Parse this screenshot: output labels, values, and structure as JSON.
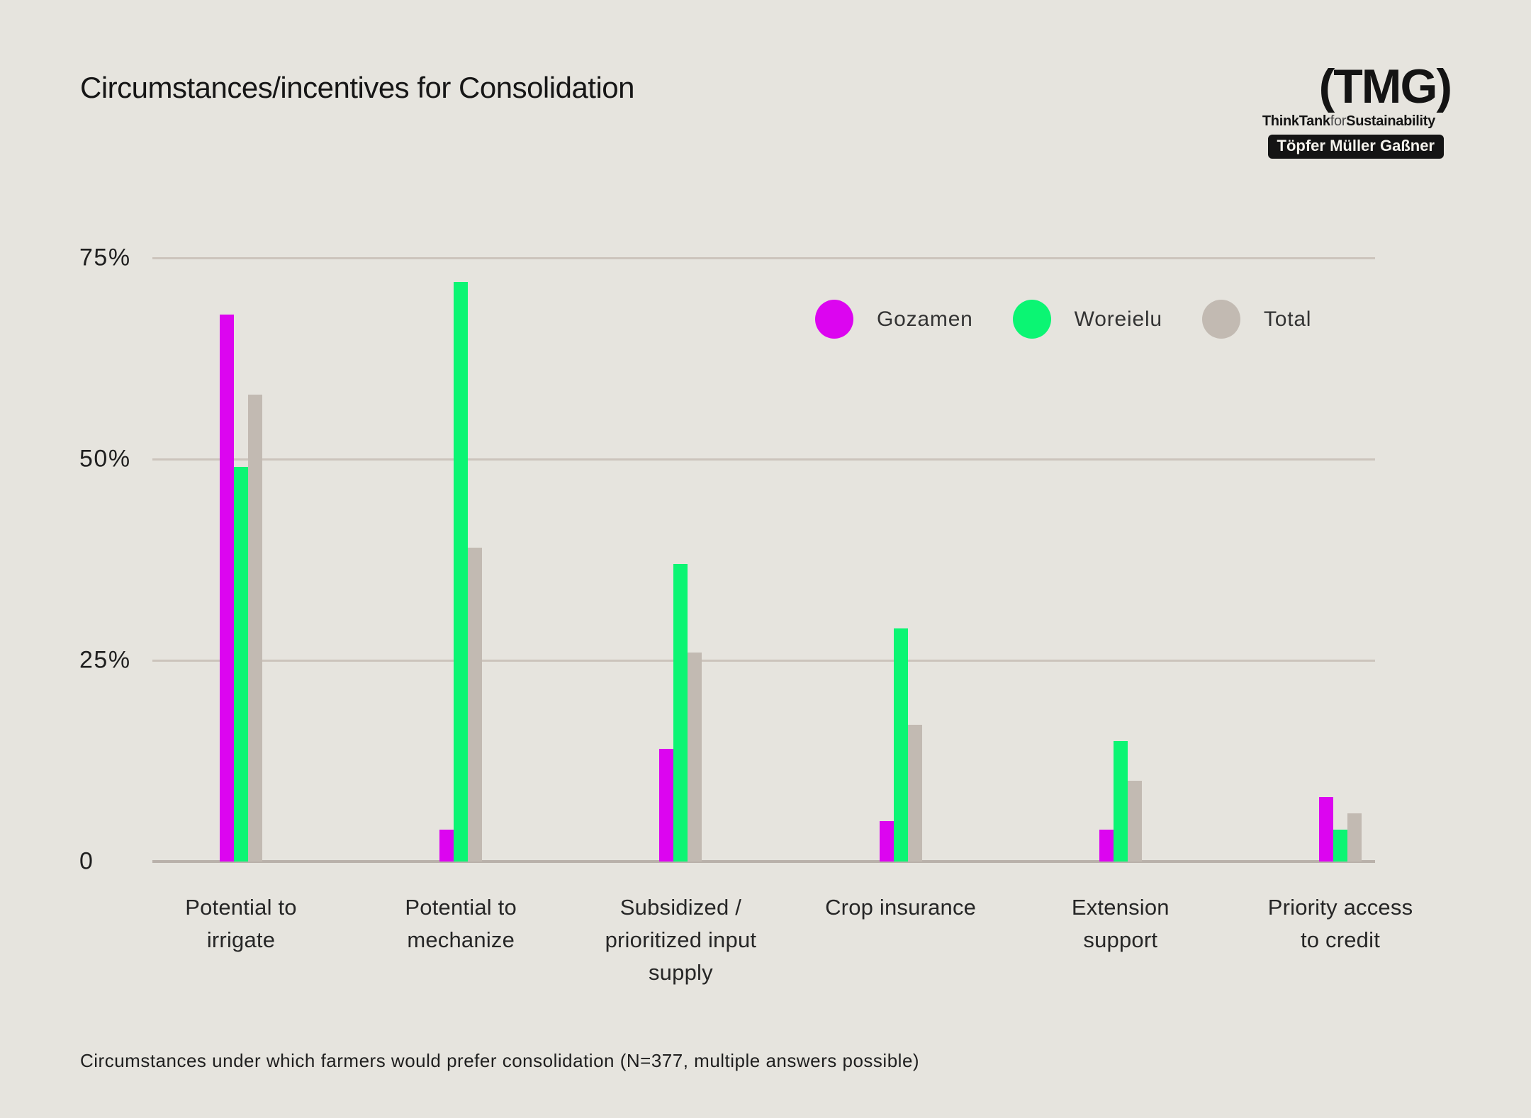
{
  "title": "Circumstances/incentives for Consolidation",
  "logo": {
    "wordmark": "(TMG)",
    "tagline_bold1": "ThinkTank",
    "tagline_light": "for",
    "tagline_bold2": "Sustainability",
    "badge": "Töpfer Müller Gaßner"
  },
  "caption": "Circumstances under which farmers would prefer consolidation (N=377, multiple answers possible)",
  "colors": {
    "background": "#E6E4DE",
    "gridline": "#CCC4BC",
    "axisline": "#B9B1AA",
    "gozamen": "#DC05F0",
    "woreielu": "#0BF573",
    "total": "#C2BAB2"
  },
  "chart_data": {
    "type": "bar",
    "categories": [
      "Potential to\nirrigate",
      "Potential to\nmechanize",
      "Subsidized /\nprioritized input\nsupply",
      "Crop insurance",
      "Extension\nsupport",
      "Priority access\nto credit"
    ],
    "series": [
      {
        "name": "Gozamen",
        "color": "#DC05F0",
        "values": [
          68,
          4,
          14,
          5,
          4,
          8
        ]
      },
      {
        "name": "Woreielu",
        "color": "#0BF573",
        "values": [
          49,
          72,
          37,
          29,
          15,
          4
        ]
      },
      {
        "name": "Total",
        "color": "#C2BAB2",
        "values": [
          58,
          39,
          26,
          17,
          10,
          6
        ]
      }
    ],
    "yticks": [
      {
        "label": "75%",
        "value": 75
      },
      {
        "label": "50%",
        "value": 50
      },
      {
        "label": "25%",
        "value": 25
      },
      {
        "label": "0",
        "value": 0
      }
    ],
    "ylim": [
      0,
      75
    ],
    "xlabel": "",
    "ylabel": "",
    "grid": true,
    "legend_position": "top-right"
  }
}
